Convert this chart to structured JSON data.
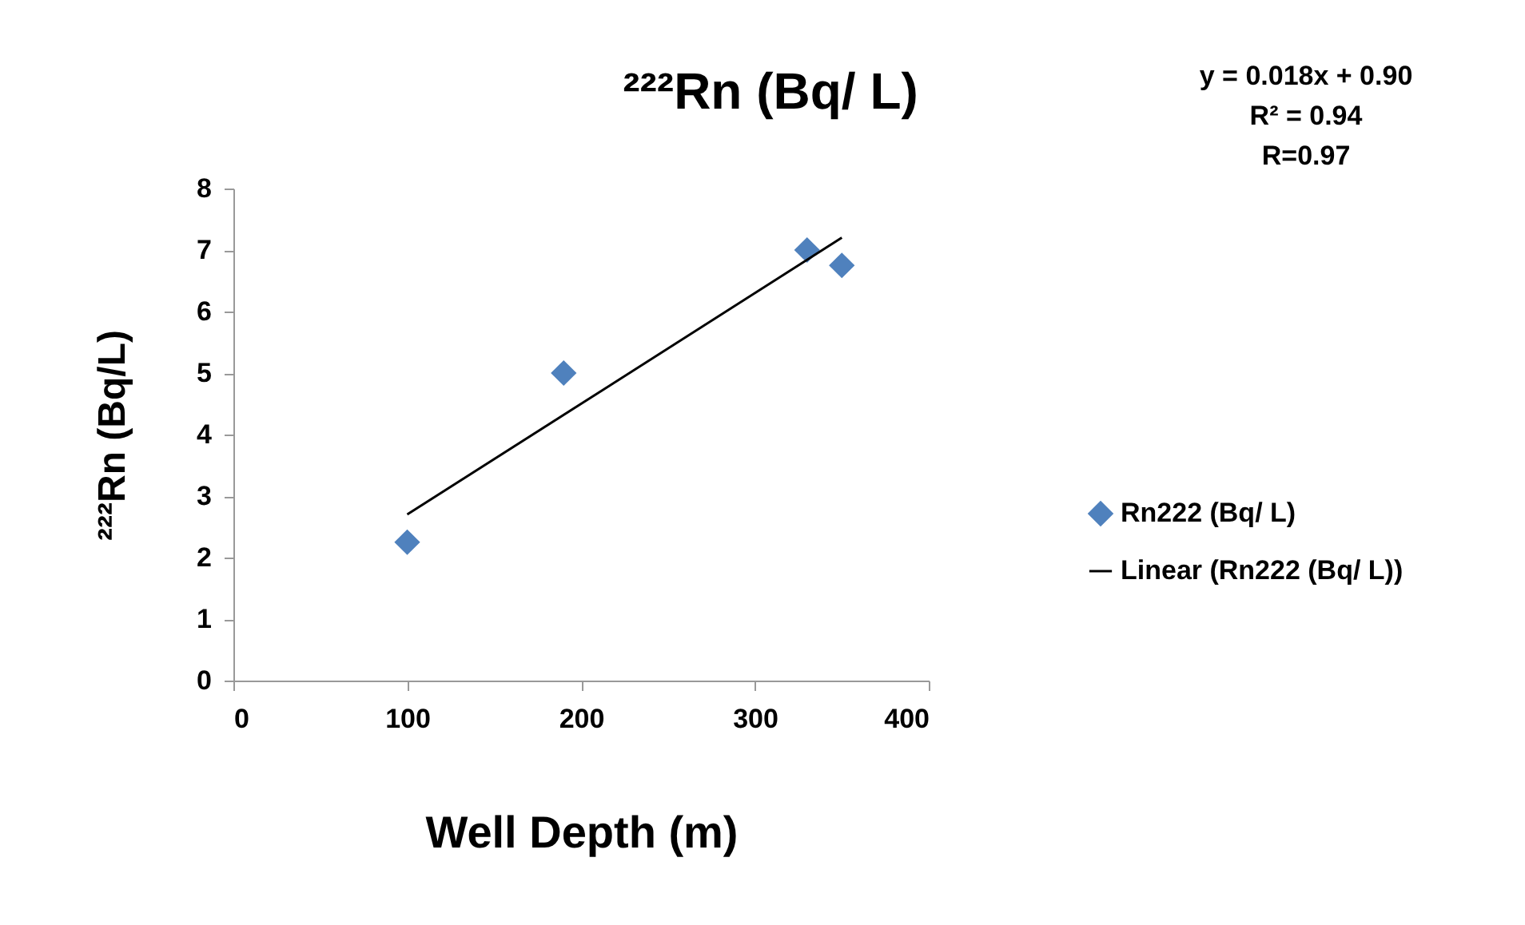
{
  "chart_data": {
    "type": "scatter",
    "title": "²²²Rn (Bq/ L)",
    "xlabel": "Well Depth (m)",
    "ylabel": "²²²Rn (Bq/L)",
    "annotations": [
      "y = 0.018x + 0.90",
      "R² = 0.94",
      "R=0.97"
    ],
    "series": [
      {
        "name": "Rn222 (Bq/ L)",
        "type": "scatter",
        "marker": "diamond",
        "color": "#4f81bd",
        "x": [
          100,
          190,
          330,
          350
        ],
        "values": [
          2.25,
          5.0,
          7.0,
          6.75
        ]
      },
      {
        "name": "Linear (Rn222 (Bq/ L))",
        "type": "line",
        "color": "#000000",
        "x": [
          100,
          350
        ],
        "values": [
          2.7,
          7.2
        ]
      }
    ],
    "xlim": [
      0,
      400
    ],
    "xticks": [
      0,
      100,
      200,
      300,
      400
    ],
    "ylim": [
      0,
      8
    ],
    "yticks": [
      0,
      1,
      2,
      3,
      4,
      5,
      6,
      7,
      8
    ],
    "grid": false,
    "legend": "right"
  }
}
